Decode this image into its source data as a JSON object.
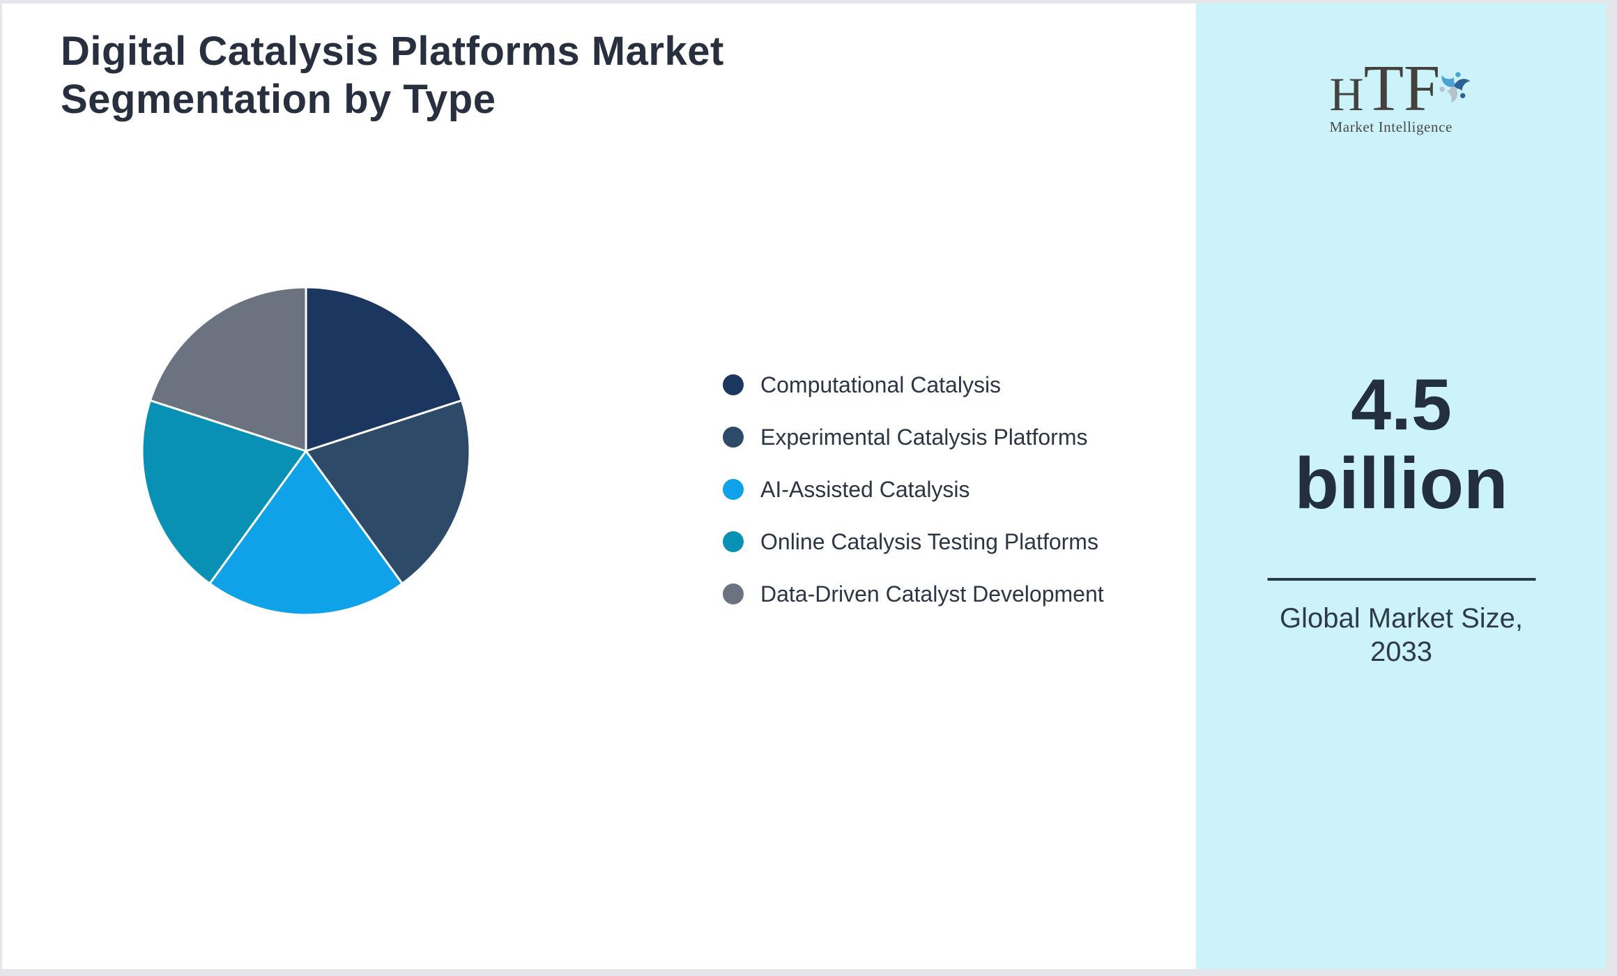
{
  "page": {
    "title_line1": "Digital Catalysis Platforms Market",
    "title_line2": "Segmentation by Type",
    "background": "#FFFFFF",
    "border_color": "#E4E6EC",
    "ink_color": "#28303F"
  },
  "logo": {
    "letter_h": "H",
    "letters_tf": "TF",
    "subtitle": "Market Intelligence",
    "mark": "dolphin-swirl-icon",
    "mark_colors": {
      "light_blue": "#4BA2D3",
      "dark_blue": "#2C6292",
      "gray": "#B5C1CB"
    },
    "text_color": "#45423E"
  },
  "panel": {
    "background": "#CDF3FA",
    "market_size": "4.5 billion",
    "caption": "Global Market Size, 2033",
    "divider_color": "#2B3A4B"
  },
  "chart_data": {
    "type": "pie",
    "title": "Digital Catalysis Platforms Market Segmentation by Type",
    "categories": [
      "Computational Catalysis",
      "Experimental Catalysis Platforms",
      "AI-Assisted Catalysis",
      "Online Catalysis Testing Platforms",
      "Data-Driven Catalyst Development"
    ],
    "values": [
      20,
      20,
      20,
      20,
      20
    ],
    "colors": [
      "#1B3760",
      "#2D4A68",
      "#0FA2E8",
      "#0891B5",
      "#6B7280"
    ],
    "start_angle_deg": 0,
    "direction": "clockwise",
    "slice_border_color": "#FFFFFF",
    "legend_position": "right",
    "data_labels": false
  }
}
